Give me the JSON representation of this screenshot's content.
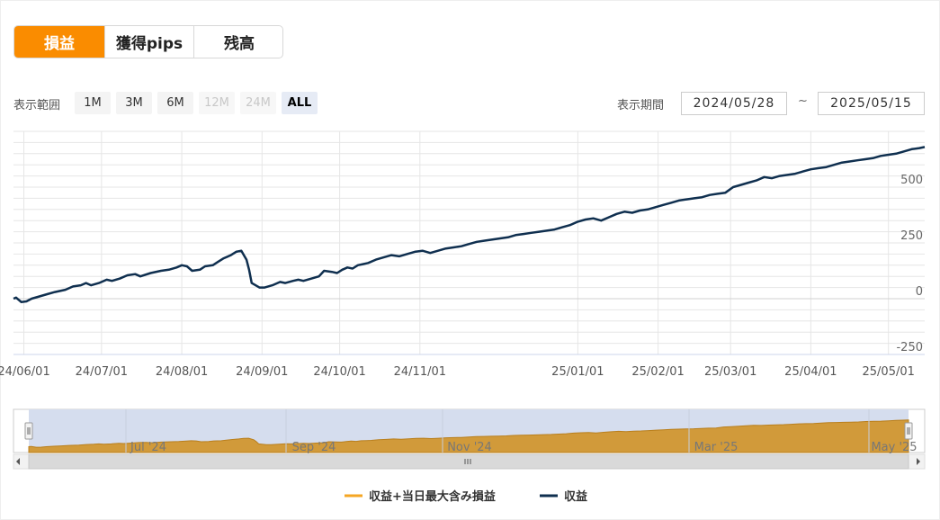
{
  "tabs": [
    {
      "label": "損益",
      "active": true
    },
    {
      "label": "獲得pips",
      "active": false
    },
    {
      "label": "残高",
      "active": false
    }
  ],
  "range": {
    "label": "表示範囲",
    "buttons": [
      {
        "label": "1M",
        "state": "enabled"
      },
      {
        "label": "3M",
        "state": "enabled"
      },
      {
        "label": "6M",
        "state": "enabled"
      },
      {
        "label": "12M",
        "state": "disabled"
      },
      {
        "label": "24M",
        "state": "disabled"
      },
      {
        "label": "ALL",
        "state": "selected"
      }
    ]
  },
  "period": {
    "label": "表示期間",
    "from": "2024/05/28",
    "separator": "~",
    "to": "2025/05/15"
  },
  "colors": {
    "line": "#0f2f4f",
    "navigator_fill": "#d19a3a",
    "navigator_bg": "#d5ddee",
    "accent": "#fa8c00",
    "legend_orange": "#f5a623"
  },
  "chart_data": {
    "type": "line",
    "x_axis_labels": [
      "24/06/01",
      "24/07/01",
      "24/08/01",
      "24/09/01",
      "24/10/01",
      "24/11/01",
      "25/01/01",
      "25/02/01",
      "25/03/01",
      "25/04/01",
      "25/05/01"
    ],
    "y_tick_labels": [
      "500",
      "250",
      "0",
      "-250"
    ],
    "ylim": [
      -250,
      750
    ],
    "xlim": [
      "2024-05-28",
      "2025-05-15"
    ],
    "series": [
      {
        "name": "収益",
        "color": "#0f2f4f",
        "points": [
          [
            "2024-05-28",
            0
          ],
          [
            "2024-05-29",
            5
          ],
          [
            "2024-05-31",
            -15
          ],
          [
            "2024-06-02",
            -12
          ],
          [
            "2024-06-04",
            0
          ],
          [
            "2024-06-07",
            10
          ],
          [
            "2024-06-10",
            20
          ],
          [
            "2024-06-13",
            30
          ],
          [
            "2024-06-17",
            40
          ],
          [
            "2024-06-20",
            55
          ],
          [
            "2024-06-23",
            60
          ],
          [
            "2024-06-25",
            70
          ],
          [
            "2024-06-27",
            60
          ],
          [
            "2024-06-30",
            70
          ],
          [
            "2024-07-03",
            85
          ],
          [
            "2024-07-05",
            80
          ],
          [
            "2024-07-08",
            90
          ],
          [
            "2024-07-11",
            105
          ],
          [
            "2024-07-14",
            110
          ],
          [
            "2024-07-16",
            100
          ],
          [
            "2024-07-20",
            115
          ],
          [
            "2024-07-24",
            125
          ],
          [
            "2024-07-27",
            130
          ],
          [
            "2024-07-30",
            140
          ],
          [
            "2024-08-01",
            150
          ],
          [
            "2024-08-03",
            145
          ],
          [
            "2024-08-05",
            125
          ],
          [
            "2024-08-08",
            130
          ],
          [
            "2024-08-10",
            145
          ],
          [
            "2024-08-13",
            150
          ],
          [
            "2024-08-15",
            165
          ],
          [
            "2024-08-17",
            180
          ],
          [
            "2024-08-20",
            195
          ],
          [
            "2024-08-22",
            210
          ],
          [
            "2024-08-24",
            215
          ],
          [
            "2024-08-26",
            175
          ],
          [
            "2024-08-27",
            130
          ],
          [
            "2024-08-28",
            70
          ],
          [
            "2024-08-31",
            50
          ],
          [
            "2024-09-02",
            50
          ],
          [
            "2024-09-05",
            60
          ],
          [
            "2024-09-08",
            75
          ],
          [
            "2024-09-10",
            70
          ],
          [
            "2024-09-13",
            80
          ],
          [
            "2024-09-15",
            85
          ],
          [
            "2024-09-17",
            80
          ],
          [
            "2024-09-20",
            90
          ],
          [
            "2024-09-23",
            100
          ],
          [
            "2024-09-25",
            125
          ],
          [
            "2024-09-28",
            120
          ],
          [
            "2024-09-30",
            115
          ],
          [
            "2024-10-02",
            130
          ],
          [
            "2024-10-04",
            140
          ],
          [
            "2024-10-06",
            135
          ],
          [
            "2024-10-08",
            150
          ],
          [
            "2024-10-10",
            155
          ],
          [
            "2024-10-12",
            160
          ],
          [
            "2024-10-15",
            175
          ],
          [
            "2024-10-18",
            185
          ],
          [
            "2024-10-21",
            195
          ],
          [
            "2024-10-24",
            190
          ],
          [
            "2024-10-27",
            200
          ],
          [
            "2024-10-30",
            210
          ],
          [
            "2024-11-02",
            215
          ],
          [
            "2024-11-05",
            205
          ],
          [
            "2024-11-08",
            215
          ],
          [
            "2024-11-11",
            225
          ],
          [
            "2024-11-14",
            230
          ],
          [
            "2024-11-17",
            235
          ],
          [
            "2024-11-20",
            245
          ],
          [
            "2024-11-23",
            255
          ],
          [
            "2024-11-26",
            260
          ],
          [
            "2024-11-29",
            265
          ],
          [
            "2024-12-02",
            270
          ],
          [
            "2024-12-05",
            275
          ],
          [
            "2024-12-08",
            285
          ],
          [
            "2024-12-11",
            290
          ],
          [
            "2024-12-14",
            295
          ],
          [
            "2024-12-17",
            300
          ],
          [
            "2024-12-20",
            305
          ],
          [
            "2024-12-23",
            310
          ],
          [
            "2024-12-26",
            320
          ],
          [
            "2024-12-29",
            330
          ],
          [
            "2025-01-01",
            345
          ],
          [
            "2025-01-04",
            355
          ],
          [
            "2025-01-07",
            360
          ],
          [
            "2025-01-10",
            350
          ],
          [
            "2025-01-13",
            365
          ],
          [
            "2025-01-16",
            380
          ],
          [
            "2025-01-19",
            390
          ],
          [
            "2025-01-22",
            385
          ],
          [
            "2025-01-25",
            395
          ],
          [
            "2025-01-28",
            400
          ],
          [
            "2025-01-31",
            410
          ],
          [
            "2025-02-03",
            420
          ],
          [
            "2025-02-06",
            430
          ],
          [
            "2025-02-09",
            440
          ],
          [
            "2025-02-12",
            445
          ],
          [
            "2025-02-15",
            450
          ],
          [
            "2025-02-18",
            455
          ],
          [
            "2025-02-21",
            465
          ],
          [
            "2025-02-24",
            470
          ],
          [
            "2025-02-27",
            475
          ],
          [
            "2025-03-02",
            500
          ],
          [
            "2025-03-05",
            510
          ],
          [
            "2025-03-08",
            520
          ],
          [
            "2025-03-11",
            530
          ],
          [
            "2025-03-14",
            545
          ],
          [
            "2025-03-17",
            540
          ],
          [
            "2025-03-20",
            550
          ],
          [
            "2025-03-23",
            555
          ],
          [
            "2025-03-26",
            560
          ],
          [
            "2025-03-29",
            570
          ],
          [
            "2025-04-01",
            580
          ],
          [
            "2025-04-04",
            585
          ],
          [
            "2025-04-07",
            590
          ],
          [
            "2025-04-10",
            600
          ],
          [
            "2025-04-13",
            610
          ],
          [
            "2025-04-16",
            615
          ],
          [
            "2025-04-19",
            620
          ],
          [
            "2025-04-22",
            625
          ],
          [
            "2025-04-25",
            630
          ],
          [
            "2025-04-28",
            640
          ],
          [
            "2025-05-01",
            645
          ],
          [
            "2025-05-04",
            650
          ],
          [
            "2025-05-07",
            660
          ],
          [
            "2025-05-10",
            670
          ],
          [
            "2025-05-13",
            675
          ],
          [
            "2025-05-15",
            680
          ]
        ]
      }
    ],
    "legend": [
      {
        "name": "収益+当日最大含み損益",
        "color": "#f5a623"
      },
      {
        "name": "収益",
        "color": "#0f2f4f"
      }
    ],
    "navigator_labels": [
      "Jul '24",
      "Sep '24",
      "Nov '24",
      "Mar '25",
      "May '25"
    ],
    "grid": true
  }
}
